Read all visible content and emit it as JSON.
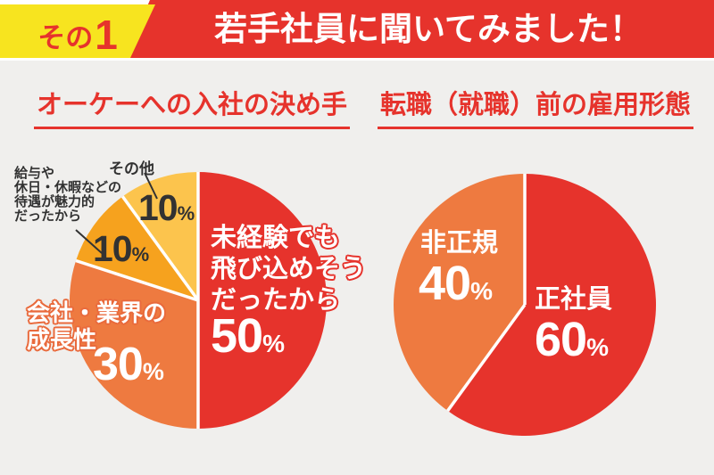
{
  "header": {
    "badge_prefix": "その",
    "badge_number": "1",
    "title": "若手社員に聞いてみました！",
    "badge_bg": "#f7e41f",
    "bar_bg": "#e6332c"
  },
  "misc": {
    "percent_sign": "%",
    "background_color": "#f0efed",
    "accent_red": "#e6332c",
    "dark_text": "#323232"
  },
  "chart_data": [
    {
      "type": "pie",
      "title": "オーケーへの入社の決め手",
      "start_angle_deg": 0,
      "direction": "clockwise",
      "legend": "labels-on-chart",
      "slices": [
        {
          "label": "未経験でも飛び込めそうだったから",
          "label_lines": [
            "未経験でも",
            "飛び込めそう",
            "だったから"
          ],
          "value": 50,
          "pct": "50",
          "color": "#e6332c"
        },
        {
          "label": "会社・業界の成長性",
          "label_lines": [
            "会社・業界の",
            "成長性"
          ],
          "value": 30,
          "pct": "30",
          "color": "#ee7a40"
        },
        {
          "label": "給与や休日・休暇などの待遇が魅力的だったから",
          "label_lines": [
            "給与や",
            "休日・休暇などの",
            "待遇が魅力的",
            "だったから"
          ],
          "value": 10,
          "pct": "10",
          "color": "#f6a21e"
        },
        {
          "label": "その他",
          "label_lines": [
            "その他"
          ],
          "value": 10,
          "pct": "10",
          "color": "#fcc44d"
        }
      ]
    },
    {
      "type": "pie",
      "title": "転職（就職）前の雇用形態",
      "start_angle_deg": 0,
      "direction": "clockwise",
      "legend": "labels-on-chart",
      "slices": [
        {
          "label": "正社員",
          "label_lines": [
            "正社員"
          ],
          "value": 60,
          "pct": "60",
          "color": "#e6332c"
        },
        {
          "label": "非正規",
          "label_lines": [
            "非正規"
          ],
          "value": 40,
          "pct": "40",
          "color": "#ee7a40"
        }
      ]
    }
  ]
}
